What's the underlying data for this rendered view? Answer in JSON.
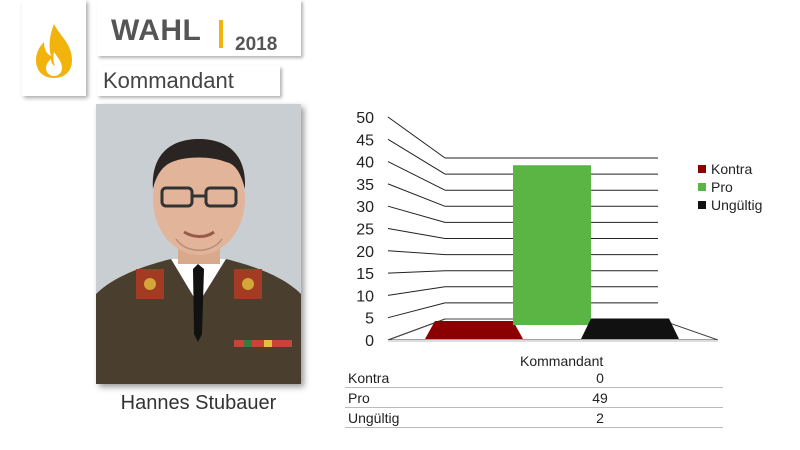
{
  "header": {
    "title": "WAHL",
    "year": "2018",
    "subtitle": "Kommandant",
    "accent_color": "#f2b30c",
    "logo_icon": "flame-icon"
  },
  "candidate": {
    "name": "Hannes Stubauer"
  },
  "chart_data": {
    "type": "bar",
    "title": "",
    "xlabel": "",
    "ylabel": "",
    "categories": [
      "Kommandant"
    ],
    "series": [
      {
        "name": "Kontra",
        "values": [
          0
        ],
        "color": "#8b0000"
      },
      {
        "name": "Pro",
        "values": [
          49
        ],
        "color": "#5bb544"
      },
      {
        "name": "Ungültig",
        "values": [
          2
        ],
        "color": "#111111"
      }
    ],
    "ylim": [
      0,
      50
    ],
    "yticks": [
      "0",
      "5",
      "10",
      "15",
      "20",
      "25",
      "30",
      "35",
      "40",
      "45",
      "50"
    ],
    "grid": true,
    "legend": "right",
    "style": "3d"
  },
  "table": {
    "header": "Kommandant",
    "rows": [
      {
        "label": "Kontra",
        "value": "0"
      },
      {
        "label": "Pro",
        "value": "49"
      },
      {
        "label": "Ungültig",
        "value": "2"
      }
    ]
  }
}
